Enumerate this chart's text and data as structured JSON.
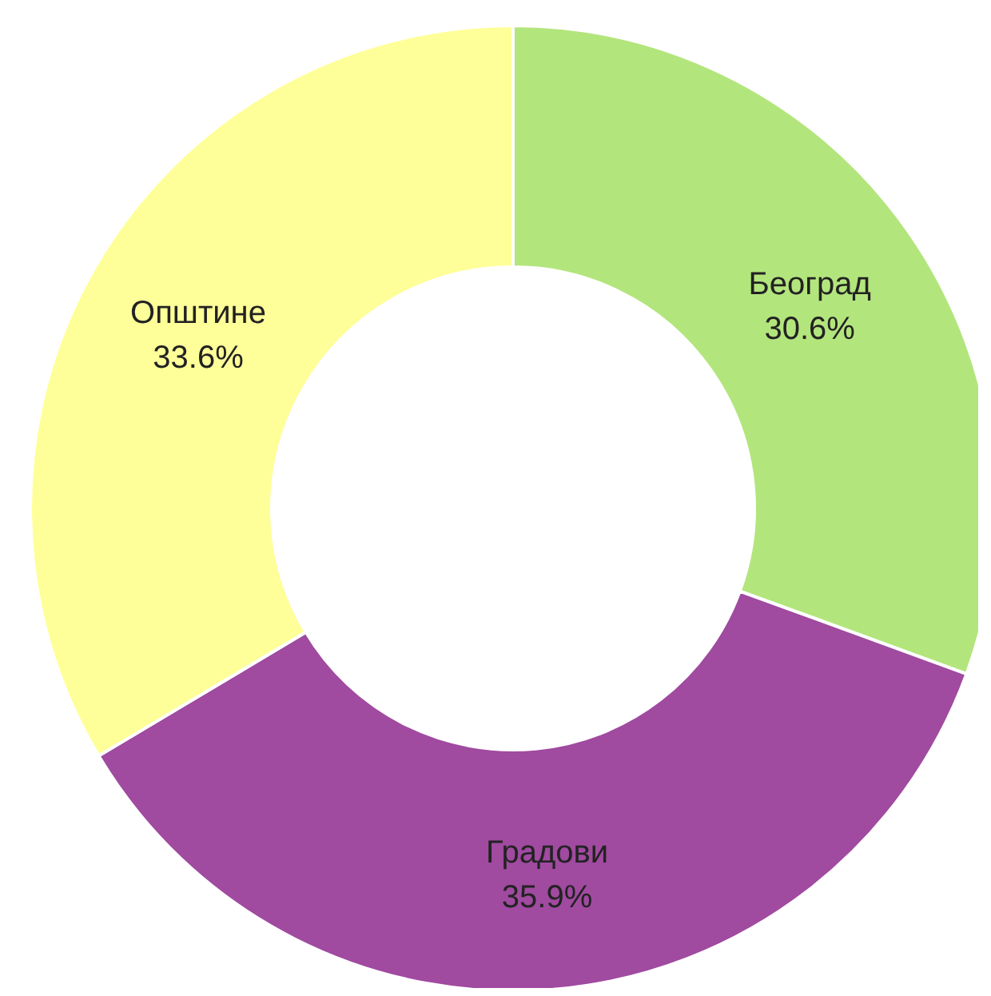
{
  "chart_data": {
    "type": "donut",
    "categories": [
      "Београд",
      "Градови",
      "Општине"
    ],
    "values": [
      30.6,
      35.9,
      33.6
    ],
    "colors": [
      "#b3e57d",
      "#a04aa0",
      "#ffff99"
    ],
    "value_labels": [
      "30.6%",
      "35.9%",
      "33.6%"
    ]
  }
}
